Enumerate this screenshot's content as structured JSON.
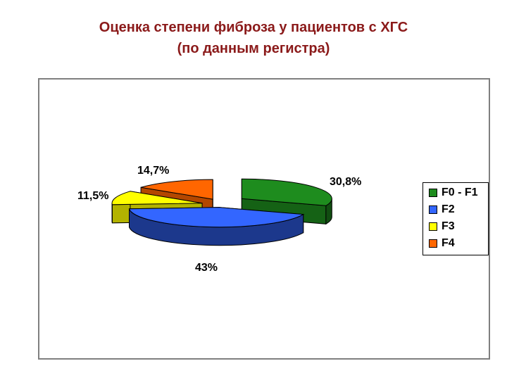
{
  "title": {
    "line1": "Оценка степени фиброза у пациентов с ХГС",
    "line2": "(по данным регистра)"
  },
  "chart_data": {
    "type": "pie",
    "style": "3d-exploded",
    "categories": [
      "F0 - F1",
      "F2",
      "F3",
      "F4"
    ],
    "values": [
      30.8,
      43,
      11.5,
      14.7
    ],
    "data_labels": [
      "30,8%",
      "43%",
      "11,5%",
      "14,7%"
    ],
    "colors": [
      "#1e8c1e",
      "#3366ff",
      "#ffff00",
      "#ff6600"
    ],
    "legend": {
      "position": "right",
      "entries": [
        "F0 - F1",
        "F2",
        "F3",
        "F4"
      ]
    }
  }
}
